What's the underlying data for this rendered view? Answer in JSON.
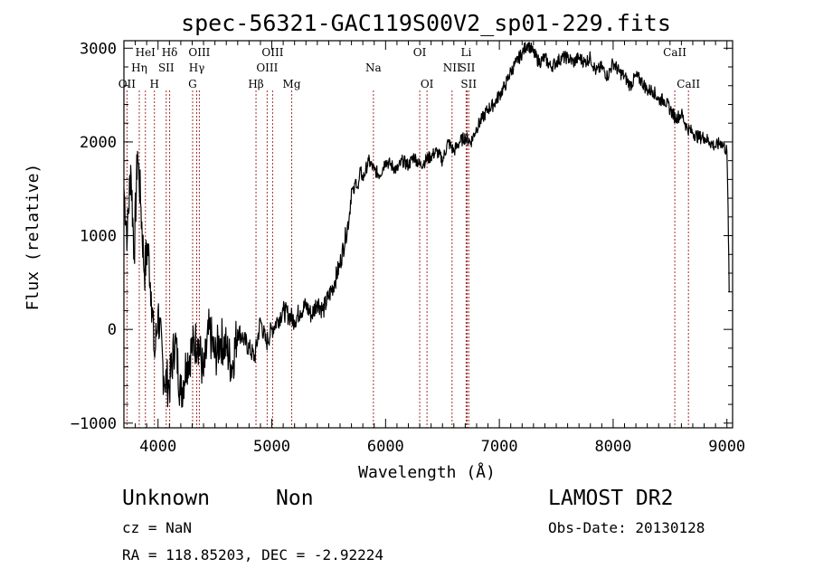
{
  "chart_data": {
    "type": "line",
    "title": "spec-56321-GAC119S00V2_sp01-229.fits",
    "xlabel": "Wavelength (Å)",
    "ylabel": "Flux (relative)",
    "xlim": [
      3700,
      9050
    ],
    "ylim": [
      -1050,
      3080
    ],
    "x_ticks": [
      4000,
      5000,
      6000,
      7000,
      8000,
      9000
    ],
    "x_tick_labels": [
      "4000",
      "5000",
      "6000",
      "7000",
      "8000",
      "9000"
    ],
    "y_ticks": [
      -1000,
      0,
      1000,
      2000,
      3000
    ],
    "y_tick_labels": [
      "−1000",
      "0",
      "1000",
      "2000",
      "3000"
    ],
    "line_color": "#000000",
    "marker_color": "#a0302f",
    "series": [
      {
        "x": [
          3700,
          3730,
          3760,
          3790,
          3820,
          3850,
          3880,
          3910,
          3940,
          3970,
          4000,
          4050,
          4100,
          4150,
          4200,
          4250,
          4300,
          4350,
          4400,
          4450,
          4500,
          4550,
          4600,
          4650,
          4700,
          4750,
          4800,
          4850,
          4900,
          4950,
          5000,
          5050,
          5100,
          5150,
          5200,
          5250,
          5300,
          5350,
          5400,
          5450,
          5500,
          5550,
          5600,
          5650,
          5680,
          5700,
          5720,
          5740,
          5760,
          5780,
          5800,
          5850,
          5900,
          5950,
          6000,
          6050,
          6100,
          6150,
          6200,
          6250,
          6300,
          6350,
          6400,
          6450,
          6500,
          6550,
          6600,
          6650,
          6700,
          6750,
          6800,
          6850,
          6900,
          6950,
          7000,
          7050,
          7100,
          7150,
          7200,
          7250,
          7300,
          7350,
          7400,
          7450,
          7500,
          7550,
          7600,
          7650,
          7700,
          7750,
          7800,
          7850,
          7900,
          7950,
          8000,
          8050,
          8100,
          8150,
          8200,
          8250,
          8300,
          8350,
          8400,
          8450,
          8500,
          8550,
          8600,
          8650,
          8700,
          8750,
          8800,
          8850,
          8900,
          8950,
          9000,
          9010,
          9020
        ],
        "y": [
          1500,
          1000,
          1750,
          800,
          1900,
          1300,
          600,
          900,
          400,
          -300,
          200,
          -500,
          -600,
          -100,
          -700,
          -350,
          -200,
          -100,
          -500,
          0,
          -300,
          -100,
          -200,
          -400,
          0,
          -100,
          -200,
          -300,
          100,
          -150,
          0,
          100,
          200,
          150,
          100,
          200,
          250,
          150,
          300,
          200,
          350,
          500,
          700,
          1000,
          1200,
          1500,
          1450,
          1600,
          1500,
          1700,
          1600,
          1800,
          1700,
          1650,
          1800,
          1750,
          1700,
          1800,
          1750,
          1850,
          1750,
          1800,
          1850,
          1900,
          1800,
          2000,
          1900,
          2000,
          2050,
          2000,
          2150,
          2250,
          2350,
          2400,
          2500,
          2600,
          2750,
          2850,
          2950,
          3050,
          2950,
          2850,
          2900,
          2800,
          2850,
          2900,
          2900,
          2850,
          2900,
          2850,
          2900,
          2750,
          2800,
          2700,
          2850,
          2750,
          2700,
          2600,
          2700,
          2650,
          2550,
          2550,
          2450,
          2450,
          2350,
          2250,
          2300,
          2150,
          2100,
          2050,
          2050,
          2000,
          1950,
          2000,
          1900,
          1300,
          400
        ]
      }
    ],
    "line_markers": [
      {
        "label": "OII",
        "x": 3727,
        "tier": 3
      },
      {
        "label": "Hη",
        "x": 3835,
        "tier": 2
      },
      {
        "label": "HeI",
        "x": 3889,
        "tier": 1
      },
      {
        "label": "H",
        "x": 3968,
        "tier": 3
      },
      {
        "label": "SII",
        "x": 4072,
        "tier": 2
      },
      {
        "label": "Hδ",
        "x": 4102,
        "tier": 1
      },
      {
        "label": "G",
        "x": 4304,
        "tier": 3
      },
      {
        "label": "Hγ",
        "x": 4340,
        "tier": 2
      },
      {
        "label": "OIII",
        "x": 4363,
        "tier": 1
      },
      {
        "label": "Hβ",
        "x": 4861,
        "tier": 3
      },
      {
        "label": "OIII",
        "x": 4959,
        "tier": 2
      },
      {
        "label": "OIII",
        "x": 5007,
        "tier": 1
      },
      {
        "label": "Mg",
        "x": 5175,
        "tier": 3
      },
      {
        "label": "Na",
        "x": 5893,
        "tier": 2
      },
      {
        "label": "OI",
        "x": 6300,
        "tier": 1
      },
      {
        "label": "OI",
        "x": 6364,
        "tier": 3
      },
      {
        "label": "NII",
        "x": 6584,
        "tier": 2
      },
      {
        "label": "Li",
        "x": 6708,
        "tier": 1
      },
      {
        "label": "SII",
        "x": 6717,
        "tier": 2
      },
      {
        "label": "SII",
        "x": 6731,
        "tier": 3
      },
      {
        "label": "CaII",
        "x": 8542,
        "tier": 1
      },
      {
        "label": "CaII",
        "x": 8662,
        "tier": 3
      }
    ]
  },
  "info": {
    "object_class": "Unknown",
    "subclass": "Non",
    "survey": "LAMOST DR2",
    "redshift": "cz = NaN",
    "obs_date": "Obs-Date: 20130128",
    "coords": "RA = 118.85203, DEC =  -2.92224"
  }
}
